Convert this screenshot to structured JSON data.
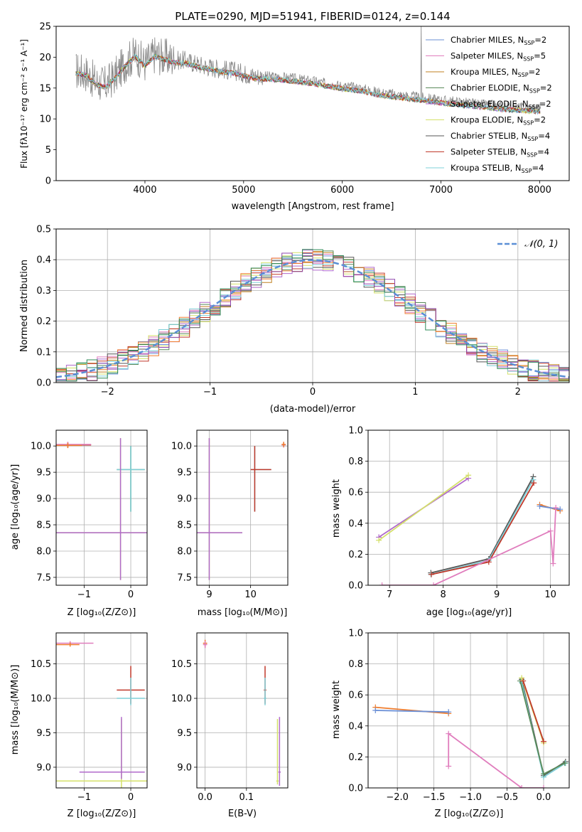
{
  "figure": {
    "title": "PLATE=0290, MJD=51941, FIBERID=0124, z=0.144",
    "colors": [
      "#6a8fd6",
      "#e07dbd",
      "#c08020",
      "#5a8a5a",
      "#b06acb",
      "#d4e06a",
      "#555555",
      "#c0392b",
      "#7fd0d8",
      "#ef7d2e",
      "#8e44ad",
      "#2e8b57"
    ]
  },
  "chart_data": [
    {
      "type": "line",
      "id": "spectrum",
      "xlabel": "wavelength [Angstrom, rest frame]",
      "ylabel": "Flux [fλ10⁻¹⁷ erg cm⁻² s⁻¹ A⁻¹]",
      "xlim": [
        3100,
        8300
      ],
      "ylim": [
        0,
        25
      ],
      "xticks": [
        4000,
        5000,
        6000,
        7000,
        8000
      ],
      "yticks": [
        0,
        5,
        10,
        15,
        20,
        25
      ],
      "grid": false,
      "legend_position": "top-right",
      "observed": {
        "x": [
          3300,
          3400,
          3500,
          3600,
          3700,
          3800,
          3900,
          4000,
          4100,
          4200,
          4300,
          4400,
          4500,
          4600,
          4700,
          4800,
          4900,
          5000,
          5100,
          5200,
          5300,
          5400,
          5500,
          5600,
          5700,
          5800,
          5900,
          6000,
          6100,
          6200,
          6300,
          6400,
          6500,
          6600,
          6700,
          6800,
          6900,
          7000,
          7100,
          7200,
          7300,
          7400,
          7500,
          7600,
          7700,
          7800,
          7900,
          8000
        ],
        "y": [
          17.8,
          17.5,
          16.0,
          15.5,
          17.0,
          19.0,
          20.5,
          19.0,
          20.5,
          20.0,
          19.5,
          19.5,
          19.0,
          18.6,
          18.3,
          18.0,
          17.8,
          17.4,
          17.0,
          16.9,
          16.8,
          16.7,
          16.5,
          16.3,
          16.1,
          15.8,
          15.6,
          15.3,
          15.1,
          14.9,
          14.5,
          14.2,
          14.0,
          13.8,
          13.6,
          13.4,
          13.2,
          13.0,
          12.8,
          12.7,
          12.5,
          12.3,
          12.2,
          12.0,
          11.9,
          11.8,
          11.7,
          11.6
        ]
      },
      "series": [
        {
          "name": "Chabrier MILES, N_SSP=2",
          "label_main": "Chabrier MILES, N",
          "label_sub": "SSP",
          "label_tail": "=2",
          "color": "#6a8fd6"
        },
        {
          "name": "Salpeter MILES, N_SSP=5",
          "label_main": "Salpeter MILES, N",
          "label_sub": "SSP",
          "label_tail": "=5",
          "color": "#e07dbd"
        },
        {
          "name": "Kroupa MILES, N_SSP=2",
          "label_main": "Kroupa MILES, N",
          "label_sub": "SSP",
          "label_tail": "=2",
          "color": "#c08020"
        },
        {
          "name": "Chabrier ELODIE, N_SSP=2",
          "label_main": "Chabrier ELODIE, N",
          "label_sub": "SSP",
          "label_tail": "=2",
          "color": "#5a8a5a"
        },
        {
          "name": "Salpeter ELODIE, N_SSP=2",
          "label_main": "Salpeter ELODIE, N",
          "label_sub": "SSP",
          "label_tail": "=2",
          "color": "#b06acb"
        },
        {
          "name": "Kroupa ELODIE, N_SSP=2",
          "label_main": "Kroupa ELODIE, N",
          "label_sub": "SSP",
          "label_tail": "=2",
          "color": "#d4e06a"
        },
        {
          "name": "Chabrier STELIB, N_SSP=4",
          "label_main": "Chabrier STELIB, N",
          "label_sub": "SSP",
          "label_tail": "=4",
          "color": "#555555"
        },
        {
          "name": "Salpeter STELIB, N_SSP=4",
          "label_main": "Salpeter STELIB, N",
          "label_sub": "SSP",
          "label_tail": "=4",
          "color": "#c0392b"
        },
        {
          "name": "Kroupa STELIB, N_SSP=4",
          "label_main": "Kroupa STELIB, N",
          "label_sub": "SSP",
          "label_tail": "=4",
          "color": "#7fd0d8"
        }
      ]
    },
    {
      "type": "line",
      "id": "residuals",
      "xlabel": "(data-model)/error",
      "ylabel": "Normed distribution",
      "xlim": [
        -2.5,
        2.5
      ],
      "ylim": [
        0,
        0.5
      ],
      "xticks": [
        -2,
        -1,
        0,
        1,
        2
      ],
      "yticks": [
        0.0,
        0.1,
        0.2,
        0.3,
        0.4,
        0.5
      ],
      "grid": true,
      "legend_position": "top-right",
      "legend_label": "𝒩(0, 1)",
      "gaussian": {
        "mean": 0,
        "sigma": 1,
        "color": "#5b8fd6"
      },
      "histogram_bin_width": 0.1,
      "histograms_note": "one step histogram per fitted model, colors as above"
    },
    {
      "type": "scatter",
      "id": "age-vs-Z",
      "xlabel": "Z [log₁₀(Z/Z⊙)]",
      "ylabel": "age  [log₁₀(age/yr)]",
      "xlim": [
        -1.6,
        0.35
      ],
      "ylim": [
        7.35,
        10.3
      ],
      "xticks": [
        -1,
        0
      ],
      "yticks": [
        7.5,
        8.0,
        8.5,
        9.0,
        9.5,
        10.0
      ],
      "grid": true
    },
    {
      "type": "scatter",
      "id": "age-vs-mass",
      "xlabel": "mass [log₁₀(M/M⊙)]",
      "ylabel": "",
      "xlim": [
        8.7,
        10.9
      ],
      "ylim": [
        7.35,
        10.3
      ],
      "xticks": [
        9,
        10
      ],
      "yticks": [
        7.5,
        8.0,
        8.5,
        9.0,
        9.5,
        10.0
      ],
      "grid": true
    },
    {
      "type": "line",
      "id": "weight-vs-age",
      "xlabel": "age  [log₁₀(age/yr)]",
      "ylabel": "mass weight",
      "xlim": [
        6.6,
        10.35
      ],
      "ylim": [
        0,
        1.0
      ],
      "xticks": [
        7,
        8,
        9,
        10
      ],
      "yticks": [
        0.0,
        0.2,
        0.4,
        0.6,
        0.8,
        1.0
      ],
      "grid": true
    },
    {
      "type": "scatter",
      "id": "mass-vs-Z",
      "xlabel": "Z [log₁₀(Z/Z⊙)]",
      "ylabel": "mass [log₁₀(M/M⊙)]",
      "xlim": [
        -1.6,
        0.35
      ],
      "ylim": [
        8.7,
        10.95
      ],
      "xticks": [
        -1,
        0
      ],
      "yticks": [
        9.0,
        9.5,
        10.0,
        10.5
      ],
      "grid": true
    },
    {
      "type": "scatter",
      "id": "mass-vs-ebv",
      "xlabel": "E(B-V)",
      "ylabel": "",
      "xlim": [
        -0.02,
        0.2
      ],
      "ylim": [
        8.7,
        10.95
      ],
      "xticks": [
        0.0,
        0.1
      ],
      "yticks": [
        9.0,
        9.5,
        10.0,
        10.5
      ],
      "grid": true
    },
    {
      "type": "line",
      "id": "weight-vs-Z",
      "xlabel": "Z [log₁₀(Z/Z⊙)]",
      "ylabel": "mass weight",
      "xlim": [
        -2.4,
        0.35
      ],
      "ylim": [
        0,
        1.0
      ],
      "xticks": [
        -2.0,
        -1.5,
        -1.0,
        -0.5,
        0.0
      ],
      "yticks": [
        0.0,
        0.2,
        0.4,
        0.6,
        0.8,
        1.0
      ],
      "grid": true
    }
  ],
  "labels": {
    "spectrum_ylabel": "Flux [fλ10⁻¹⁷ erg cm⁻² s⁻¹ A⁻¹]",
    "spectrum_xlabel": "wavelength [Angstrom, rest frame]",
    "resid_ylabel": "Normed distribution",
    "resid_xlabel": "(data-model)/error",
    "z_label": "Z [log₁₀(Z/Z⊙)]",
    "mass_label": "mass [log₁₀(M/M⊙)]",
    "age_label": "age  [log₁₀(age/yr)]",
    "weight_label": "mass weight",
    "ebv_label": "E(B-V)"
  }
}
